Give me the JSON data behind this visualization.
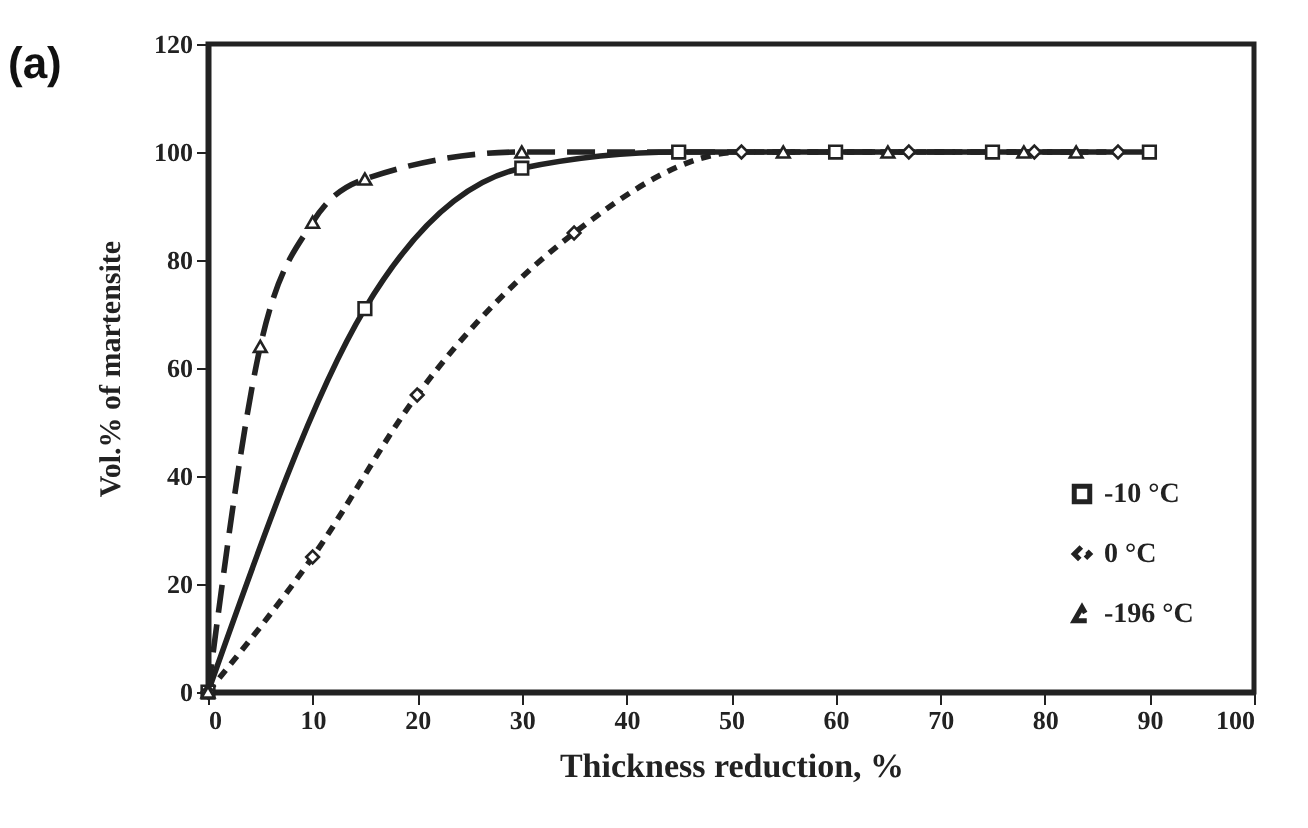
{
  "chart_data": {
    "type": "line",
    "title": "(a)",
    "xlabel": "Thickness reduction, %",
    "ylabel": "Vol.% of martensite",
    "xlim": [
      0,
      100
    ],
    "xticks": [
      0,
      10,
      20,
      30,
      40,
      50,
      60,
      70,
      80,
      90,
      100
    ],
    "ylim": [
      0,
      120
    ],
    "yticks": [
      0,
      20,
      40,
      60,
      80,
      100,
      120
    ],
    "grid": false,
    "legend": "bottom right",
    "series": [
      {
        "name": "-10 °C",
        "color": "#222222",
        "marker": "square",
        "line_style": "solid",
        "x": [
          0,
          15,
          30,
          45,
          60,
          75,
          90
        ],
        "values": [
          0,
          71,
          97,
          100,
          100,
          100,
          100
        ]
      },
      {
        "name": "0 °C",
        "color": "#222222",
        "marker": "diamond",
        "line_style": "dotted",
        "x": [
          0,
          10,
          20,
          35,
          51,
          67,
          79,
          87
        ],
        "values": [
          0,
          25,
          55,
          85,
          100,
          100,
          100,
          100
        ]
      },
      {
        "name": "-196 °C",
        "color": "#222222",
        "marker": "triangle",
        "line_style": "dashed",
        "x": [
          0,
          5,
          10,
          15,
          30,
          55,
          65,
          78,
          83
        ],
        "values": [
          0,
          64,
          87,
          95,
          100,
          100,
          100,
          100,
          100
        ]
      }
    ]
  }
}
